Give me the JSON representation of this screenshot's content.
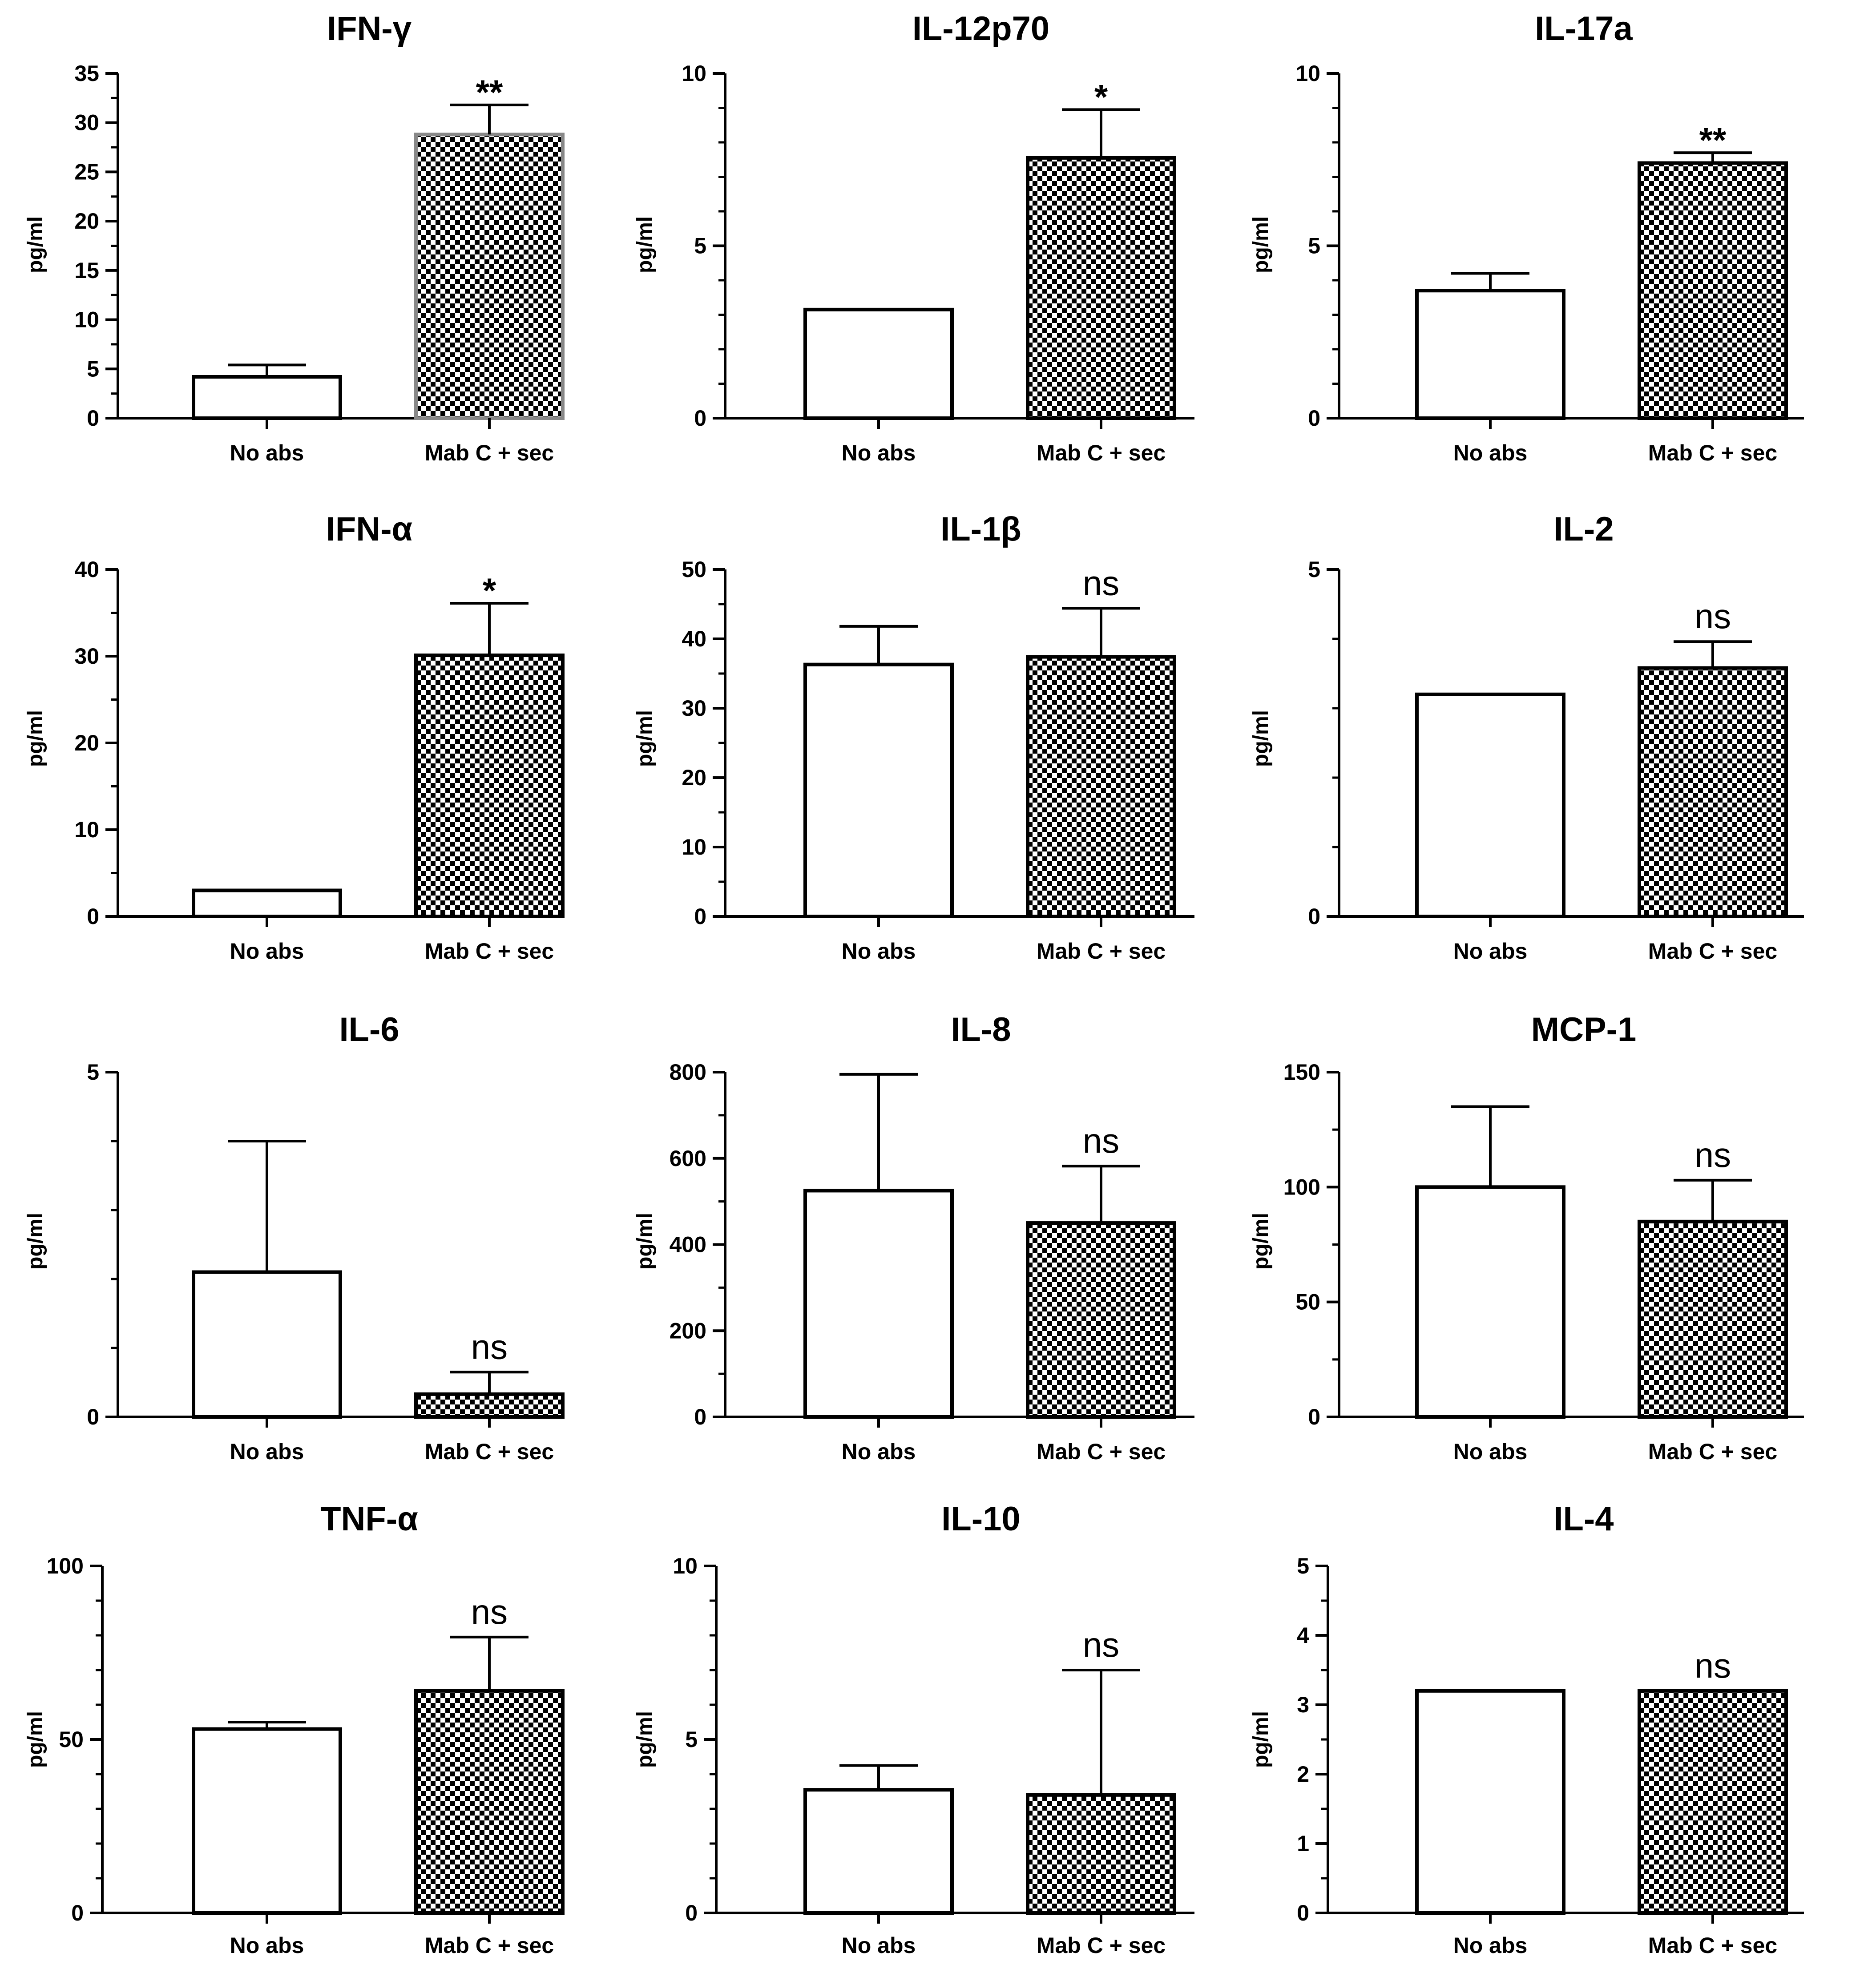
{
  "figure": {
    "patterns": {
      "checker_dark": "#000000",
      "checker_light": "#ffffff"
    },
    "colors": {
      "axis": "#000000",
      "open_bar_fill": "#ffffff",
      "ifn_gamma_bar_edge": "#888888"
    }
  },
  "chart_data": [
    {
      "type": "bar",
      "title": "IFN-γ",
      "ylabel": "pg/ml",
      "categories": [
        "No abs",
        "Mab C + sec"
      ],
      "values": [
        4.2,
        28.8
      ],
      "errors": [
        1.2,
        3.0
      ],
      "ylim": [
        0,
        35
      ],
      "ticks": [
        0,
        5,
        10,
        15,
        20,
        25,
        30,
        35
      ],
      "annotation": "**",
      "annotation_value": 31.8
    },
    {
      "type": "bar",
      "title": "IL-12p70",
      "ylabel": "pg/ml",
      "categories": [
        "No abs",
        "Mab C + sec"
      ],
      "values": [
        3.15,
        7.55
      ],
      "errors": [
        0,
        1.4
      ],
      "ylim": [
        0,
        10
      ],
      "ticks": [
        0,
        5,
        10
      ],
      "annotation": "*",
      "annotation_value": 8.95
    },
    {
      "type": "bar",
      "title": "IL-17a",
      "ylabel": "pg/ml",
      "categories": [
        "No abs",
        "Mab C + sec"
      ],
      "values": [
        3.7,
        7.4
      ],
      "errors": [
        0.5,
        0.3
      ],
      "ylim": [
        0,
        10
      ],
      "ticks": [
        0,
        5,
        10
      ],
      "annotation": "**",
      "annotation_value": 7.7
    },
    {
      "type": "bar",
      "title": "IFN-α",
      "ylabel": "pg/ml",
      "categories": [
        "No abs",
        "Mab C + sec"
      ],
      "values": [
        3.0,
        30.1
      ],
      "errors": [
        0,
        6.0
      ],
      "ylim": [
        0,
        40
      ],
      "ticks": [
        0,
        10,
        20,
        30,
        40
      ],
      "annotation": "*",
      "annotation_value": 36.1
    },
    {
      "type": "bar",
      "title": "IL-1β",
      "ylabel": "pg/ml",
      "categories": [
        "No abs",
        "Mab C + sec"
      ],
      "values": [
        36.3,
        37.4
      ],
      "errors": [
        5.5,
        7.0
      ],
      "ylim": [
        0,
        50
      ],
      "ticks": [
        0,
        10,
        20,
        30,
        40,
        50
      ],
      "annotation": "ns",
      "annotation_value": 44.4
    },
    {
      "type": "bar",
      "title": "IL-2",
      "ylabel": "pg/ml",
      "categories": [
        "No abs",
        "Mab C + sec"
      ],
      "values": [
        3.2,
        3.58
      ],
      "errors": [
        0,
        0.38
      ],
      "ylim": [
        0,
        5
      ],
      "ticks": [
        0,
        5
      ],
      "annotation": "ns",
      "annotation_value": 3.96
    },
    {
      "type": "bar",
      "title": "IL-6",
      "ylabel": "pg/ml",
      "categories": [
        "No abs",
        "Mab C + sec"
      ],
      "values": [
        2.1,
        0.33
      ],
      "errors": [
        1.9,
        0.32
      ],
      "ylim": [
        0,
        5
      ],
      "ticks": [
        0,
        5
      ],
      "annotation": "ns",
      "annotation_value": 0.65
    },
    {
      "type": "bar",
      "title": "IL-8",
      "ylabel": "pg/ml",
      "categories": [
        "No abs",
        "Mab C + sec"
      ],
      "values": [
        525,
        450
      ],
      "errors": [
        270,
        132
      ],
      "ylim": [
        0,
        800
      ],
      "ticks": [
        0,
        200,
        400,
        600,
        800
      ],
      "annotation": "ns",
      "annotation_value": 582
    },
    {
      "type": "bar",
      "title": "MCP-1",
      "ylabel": "pg/ml",
      "categories": [
        "No abs",
        "Mab C + sec"
      ],
      "values": [
        100,
        85
      ],
      "errors": [
        35,
        18
      ],
      "ylim": [
        0,
        150
      ],
      "ticks": [
        0,
        50,
        100,
        150
      ],
      "annotation": "ns",
      "annotation_value": 103
    },
    {
      "type": "bar",
      "title": "TNF-α",
      "ylabel": "pg/ml",
      "categories": [
        "No abs",
        "Mab C + sec"
      ],
      "values": [
        53,
        64
      ],
      "errors": [
        2,
        15.5
      ],
      "ylim": [
        0,
        100
      ],
      "ticks": [
        0,
        50,
        100
      ],
      "annotation": "ns",
      "annotation_value": 79.5
    },
    {
      "type": "bar",
      "title": "IL-10",
      "ylabel": "pg/ml",
      "categories": [
        "No abs",
        "Mab C + sec"
      ],
      "values": [
        3.55,
        3.4
      ],
      "errors": [
        0.7,
        3.6
      ],
      "ylim": [
        0,
        10
      ],
      "ticks": [
        0,
        5,
        10
      ],
      "annotation": "ns",
      "annotation_value": 7.0
    },
    {
      "type": "bar",
      "title": "IL-4",
      "ylabel": "pg/ml",
      "categories": [
        "No abs",
        "Mab C + sec"
      ],
      "values": [
        3.2,
        3.2
      ],
      "errors": [
        0,
        0
      ],
      "ylim": [
        0,
        5
      ],
      "ticks": [
        0,
        1,
        2,
        3,
        4,
        5
      ],
      "annotation": "ns",
      "annotation_value": 3.2
    }
  ]
}
